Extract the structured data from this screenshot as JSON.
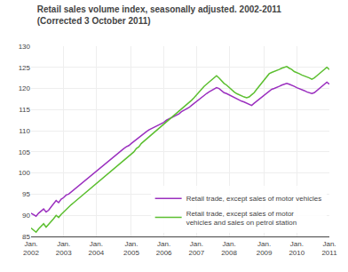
{
  "chart_data": {
    "type": "line",
    "title": "Retail sales volume index, seasonally adjusted. 2002-2011",
    "subtitle": "(Corrected 3 October 2011)",
    "categories": [
      "Jan.\n2002",
      null,
      null,
      null,
      null,
      null,
      null,
      null,
      null,
      null,
      null,
      null,
      null,
      "Jan.\n2003",
      null,
      null,
      null,
      null,
      null,
      null,
      null,
      null,
      null,
      null,
      null,
      null,
      "Jan.\n2004",
      null,
      null,
      null,
      null,
      null,
      null,
      null,
      null,
      null,
      null,
      null,
      null,
      null,
      "Jan.\n2005",
      null,
      null,
      null,
      null,
      null,
      null,
      null,
      null,
      null,
      null,
      null,
      null,
      "Jan.\n2006",
      null,
      null,
      null,
      null,
      null,
      null,
      null,
      null,
      null,
      null,
      null,
      null,
      "Jan.\n2007",
      null,
      null,
      null,
      null,
      null,
      null,
      null,
      null,
      null,
      null,
      null,
      null,
      "Jan.\n2008",
      null,
      null,
      null,
      null,
      null,
      null,
      null,
      null,
      null,
      null,
      null,
      null,
      null,
      "Jan.\n2009",
      null,
      null,
      null,
      null,
      null,
      null,
      null,
      null,
      null,
      null,
      null,
      null,
      "Jan.\n2010",
      null,
      null,
      null,
      null,
      null,
      null,
      null,
      null,
      null,
      null,
      null,
      null,
      "Jan.\n2011"
    ],
    "series": [
      {
        "name": "Retail trade, except sales of motor vehicles",
        "color": "#9B30BF",
        "values": [
          90.5,
          90.2,
          89.8,
          90.5,
          91.0,
          91.5,
          90.8,
          91.2,
          92.0,
          92.8,
          93.5,
          93.0,
          93.8,
          94.2,
          94.8,
          95.0,
          95.5,
          96.0,
          96.5,
          97.0,
          97.5,
          98.0,
          98.5,
          99.0,
          99.5,
          100.0,
          100.5,
          101.0,
          101.5,
          102.0,
          102.5,
          103.0,
          103.5,
          104.0,
          104.5,
          105.0,
          105.5,
          105.8,
          106.2,
          106.5,
          107.0,
          107.5,
          108.0,
          108.5,
          109.0,
          109.5,
          109.8,
          110.2,
          110.5,
          110.8,
          111.2,
          111.5,
          111.8,
          112.0,
          112.5,
          112.8,
          113.2,
          113.5,
          113.8,
          114.0,
          114.5,
          114.8,
          115.2,
          115.5,
          116.0,
          116.5,
          117.0,
          117.5,
          118.0,
          118.5,
          118.8,
          119.2,
          119.5,
          119.8,
          120.2,
          120.0,
          119.5,
          119.0,
          118.8,
          118.5,
          118.2,
          117.8,
          117.5,
          117.2,
          117.0,
          116.8,
          116.5,
          116.2,
          116.0,
          116.5,
          117.0,
          117.5,
          118.0,
          118.5,
          119.0,
          119.5,
          119.8,
          120.0,
          120.2,
          120.5,
          120.8,
          121.0,
          121.2,
          121.0,
          120.8,
          120.5,
          120.2,
          120.0,
          119.8,
          119.5,
          119.2,
          119.0,
          118.8,
          119.0,
          119.5,
          120.0,
          120.5,
          121.0,
          121.5,
          121.0
        ]
      },
      {
        "name": "Retail trade, except sales of motor\nvehicles and sales on petrol station",
        "color": "#5CBF30",
        "values": [
          87.0,
          86.5,
          86.0,
          86.8,
          87.5,
          88.0,
          87.2,
          87.8,
          88.5,
          89.2,
          90.0,
          89.5,
          90.2,
          90.8,
          91.5,
          92.0,
          92.5,
          93.0,
          93.5,
          94.0,
          94.5,
          95.0,
          95.5,
          96.0,
          96.5,
          97.0,
          97.5,
          98.0,
          98.5,
          99.0,
          99.5,
          100.0,
          100.5,
          101.0,
          101.5,
          102.0,
          102.5,
          103.0,
          103.5,
          104.0,
          104.5,
          105.0,
          105.8,
          106.2,
          107.0,
          107.5,
          108.0,
          108.5,
          109.0,
          109.5,
          110.0,
          110.5,
          111.0,
          111.5,
          112.0,
          112.5,
          113.0,
          113.5,
          114.0,
          114.5,
          115.0,
          115.5,
          116.0,
          116.5,
          117.2,
          117.8,
          118.5,
          119.0,
          119.8,
          120.5,
          121.0,
          121.5,
          122.0,
          122.5,
          123.0,
          122.5,
          121.8,
          121.2,
          120.8,
          120.2,
          119.8,
          119.2,
          118.8,
          118.5,
          118.2,
          118.0,
          117.8,
          118.0,
          118.5,
          119.0,
          119.8,
          120.5,
          121.2,
          122.0,
          122.8,
          123.5,
          123.8,
          124.0,
          124.2,
          124.5,
          124.8,
          125.0,
          125.2,
          124.8,
          124.5,
          124.0,
          123.8,
          123.5,
          123.2,
          123.0,
          122.8,
          122.5,
          122.2,
          122.5,
          123.0,
          123.5,
          124.0,
          124.5,
          125.0,
          124.5
        ]
      }
    ],
    "ylim": [
      85,
      130
    ],
    "yticks": [
      85,
      90,
      95,
      100,
      105,
      110,
      115,
      120,
      125,
      130
    ],
    "grid": true,
    "legend": "lower right"
  }
}
